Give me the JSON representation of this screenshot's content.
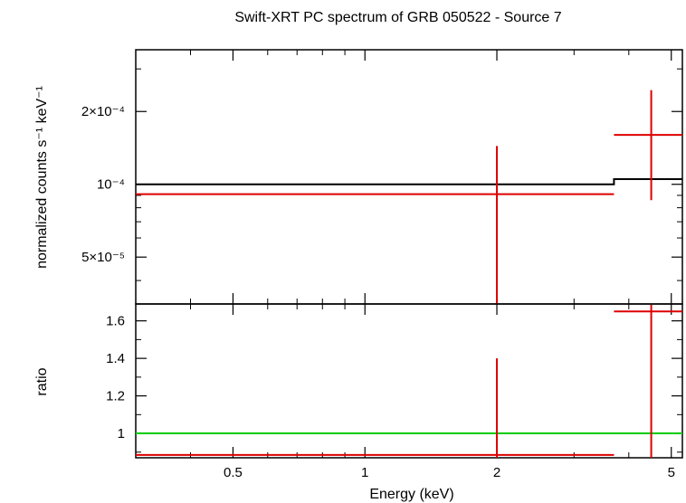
{
  "title": "Swift-XRT PC spectrum of GRB 050522 - Source 7",
  "chart_data": [
    {
      "type": "scatter",
      "panel": "spectrum",
      "ylabel": "normalized counts s⁻¹ keV⁻¹",
      "xscale": "log",
      "yscale": "log",
      "xlim": [
        0.3,
        5.3
      ],
      "ylim": [
        3.2e-05,
        0.00036
      ],
      "yticks": [
        {
          "value": 5e-05,
          "label": "5×10⁻⁵"
        },
        {
          "value": 0.0001,
          "label": "10⁻⁴"
        },
        {
          "value": 0.0002,
          "label": "2×10⁻⁴"
        }
      ],
      "series": [
        {
          "role": "data",
          "color": "#dd0000",
          "points": [
            {
              "x": 2.0,
              "xlo": 0.3,
              "xhi": 3.7,
              "y": 9.1e-05,
              "ylo": 3.2e-05,
              "yhi": 0.000144
            },
            {
              "x": 4.5,
              "xlo": 3.7,
              "xhi": 5.3,
              "y": 0.00016,
              "ylo": 8.6e-05,
              "yhi": 0.000245
            }
          ]
        },
        {
          "role": "model",
          "color": "#000000",
          "steps": [
            {
              "xlo": 0.3,
              "xhi": 3.7,
              "y": 0.0001
            },
            {
              "xlo": 3.7,
              "xhi": 5.3,
              "y": 0.000105
            }
          ]
        }
      ]
    },
    {
      "type": "scatter",
      "panel": "ratio",
      "ylabel": "ratio",
      "xlabel": "Energy (keV)",
      "xscale": "log",
      "xlim": [
        0.3,
        5.3
      ],
      "ylim": [
        0.87,
        1.69
      ],
      "xticks": [
        {
          "value": 0.5,
          "label": "0.5"
        },
        {
          "value": 1,
          "label": "1"
        },
        {
          "value": 2,
          "label": "2"
        },
        {
          "value": 5,
          "label": "5"
        }
      ],
      "yticks": [
        {
          "value": 1,
          "label": "1"
        },
        {
          "value": 1.2,
          "label": "1.2"
        },
        {
          "value": 1.4,
          "label": "1.4"
        },
        {
          "value": 1.6,
          "label": "1.6"
        }
      ],
      "reference_line": {
        "y": 1,
        "color": "#00cc00"
      },
      "series": [
        {
          "role": "data",
          "color": "#dd0000",
          "points": [
            {
              "x": 2.0,
              "xlo": 0.3,
              "xhi": 3.7,
              "y": 0.885,
              "ylo": 0.87,
              "yhi": 1.4
            },
            {
              "x": 4.5,
              "xlo": 3.7,
              "xhi": 5.3,
              "y": 1.65,
              "ylo": 0.87,
              "yhi": 1.69
            }
          ]
        }
      ]
    }
  ]
}
